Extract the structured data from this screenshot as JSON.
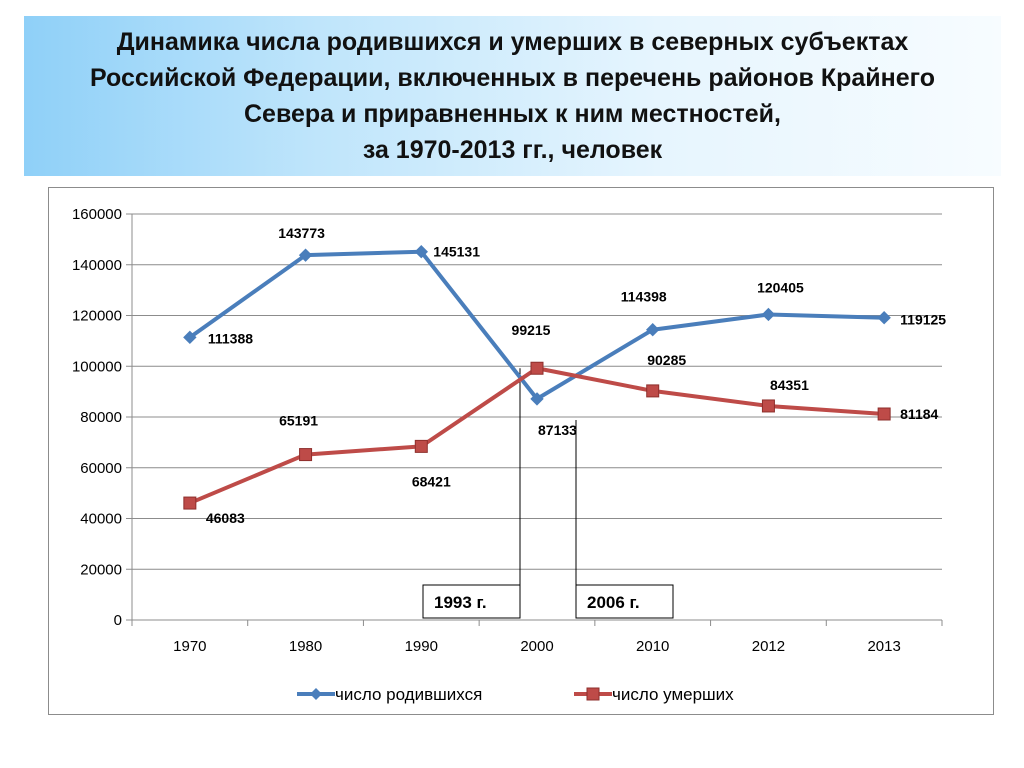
{
  "title": {
    "line1": "Динамика числа родившихся и умерших в северных субъектах",
    "line2": "Российской Федерации, включенных в перечень районов Крайнего",
    "line3": "Севера и приравненных к ним местностей,",
    "line4": "за 1970-2013 гг., человек"
  },
  "colors": {
    "births": "#4a7ebb",
    "deaths": "#be4b48",
    "grid": "#8c8c8c",
    "text": "#000000"
  },
  "chart_data": {
    "type": "line",
    "title": "Динамика числа родившихся и умерших в северных субъектах Российской Федерации, включенных в перечень районов Крайнего Севера и приравненных к ним местностей, за 1970-2013 гг., человек",
    "categories": [
      "1970",
      "1980",
      "1990",
      "2000",
      "2010",
      "2012",
      "2013"
    ],
    "ylim": [
      0,
      160000
    ],
    "yticks": [
      0,
      20000,
      40000,
      60000,
      80000,
      100000,
      120000,
      140000,
      160000
    ],
    "grid": true,
    "legend_position": "bottom",
    "series": [
      {
        "name": "число родившихся",
        "marker": "diamond",
        "values": [
          111388,
          143773,
          145131,
          87133,
          114398,
          120405,
          119125
        ],
        "labels": [
          "111388",
          "143773",
          "145131",
          "87133",
          "114398",
          "120405",
          "119125"
        ]
      },
      {
        "name": "число умерших",
        "marker": "square",
        "values": [
          46083,
          65191,
          68421,
          99215,
          90285,
          84351,
          81184
        ],
        "labels": [
          "46083",
          "65191",
          "68421",
          "99215",
          "90285",
          "84351",
          "81184"
        ]
      }
    ],
    "annotations": [
      {
        "text": "1993 г.",
        "at_category": "2000",
        "side": "left"
      },
      {
        "text": "2006 г.",
        "at_category": "2000",
        "side": "right"
      }
    ]
  }
}
